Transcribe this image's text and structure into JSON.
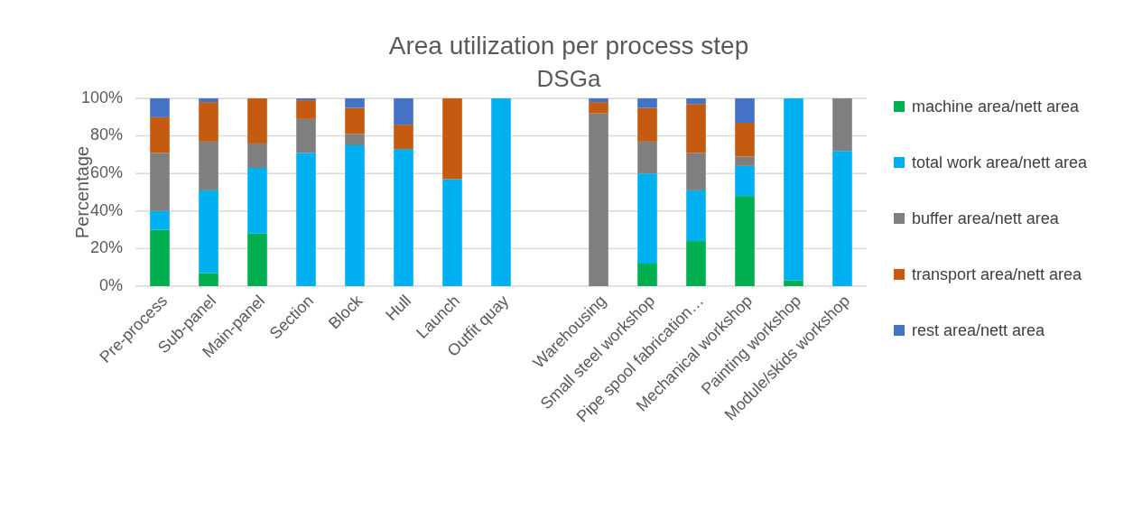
{
  "chart_data": {
    "type": "bar",
    "stacked": true,
    "title": "Area utilization per process step",
    "subtitle": "DSGa",
    "ylabel": "Percentage",
    "categories": [
      "Pre-process",
      "Sub-panel",
      "Main-panel",
      "Section",
      "Block",
      "Hull",
      "Launch",
      "Outfit quay",
      null,
      "Warehousing",
      "Small steel workshop",
      "Pipe spool fabrication…",
      "Mechanical workshop",
      "Painting workshop",
      "Module/skids workshop"
    ],
    "series": [
      {
        "name": "machine area/nett area",
        "color": "#00b050",
        "values": [
          30,
          7,
          28,
          0,
          0,
          0,
          0,
          0,
          null,
          0,
          12,
          24,
          48,
          3,
          0
        ]
      },
      {
        "name": "total work area/nett area",
        "color": "#00b0f0",
        "values": [
          10,
          44,
          35,
          71,
          75,
          73,
          57,
          100,
          null,
          0,
          48,
          27,
          16,
          97,
          72
        ]
      },
      {
        "name": "buffer area/nett area",
        "color": "#7f7f7f",
        "values": [
          31,
          26,
          13,
          18,
          6,
          0,
          0,
          0,
          null,
          92,
          17,
          20,
          5,
          0,
          28
        ]
      },
      {
        "name": "transport area/nett area",
        "color": "#c55a11",
        "values": [
          19,
          21,
          24,
          10,
          14,
          13,
          43,
          0,
          null,
          6,
          18,
          26,
          18,
          0,
          0
        ]
      },
      {
        "name": "rest area/nett area",
        "color": "#4472c4",
        "values": [
          10,
          2,
          0,
          1,
          5,
          14,
          0,
          0,
          null,
          2,
          5,
          3,
          13,
          0,
          0
        ]
      }
    ],
    "ylim": [
      0,
      100
    ],
    "yticks": [
      {
        "value": 0,
        "label": "0%"
      },
      {
        "value": 20,
        "label": "20%"
      },
      {
        "value": 40,
        "label": "40%"
      },
      {
        "value": 60,
        "label": "60%"
      },
      {
        "value": 80,
        "label": "80%"
      },
      {
        "value": 100,
        "label": "100%"
      }
    ],
    "grid": "y",
    "legend": "right"
  }
}
